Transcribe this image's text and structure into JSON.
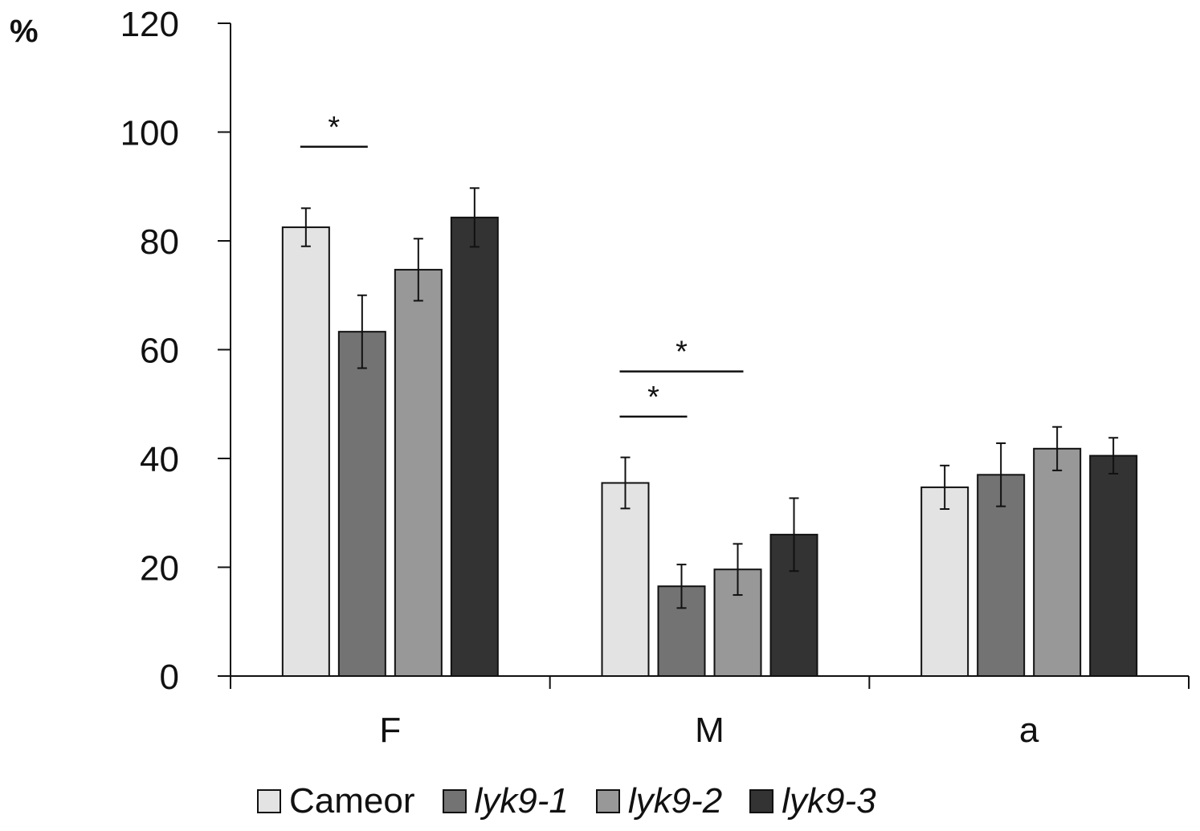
{
  "chart_data": {
    "type": "bar",
    "title": "",
    "xlabel": "",
    "ylabel": "%",
    "ylim": [
      0,
      120
    ],
    "yticks": [
      0,
      20,
      40,
      60,
      80,
      100,
      120
    ],
    "grid": false,
    "legend_placement": "bottom",
    "categories": [
      "F",
      "M",
      "a"
    ],
    "series": [
      {
        "name": "Cameor",
        "italic": false,
        "color": "#e3e3e3",
        "values": [
          82.5,
          35.5,
          34.7
        ],
        "errors": [
          3.5,
          4.7,
          4.0
        ]
      },
      {
        "name": "lyk9-1",
        "italic": true,
        "color": "#737373",
        "values": [
          63.3,
          16.5,
          37.0
        ],
        "errors": [
          6.7,
          4.0,
          5.8
        ]
      },
      {
        "name": "lyk9-2",
        "italic": true,
        "color": "#989898",
        "values": [
          74.7,
          19.6,
          41.8
        ],
        "errors": [
          5.7,
          4.7,
          4.0
        ]
      },
      {
        "name": "lyk9-3",
        "italic": true,
        "color": "#333333",
        "values": [
          84.3,
          26.0,
          40.5
        ],
        "errors": [
          5.4,
          6.7,
          3.3
        ]
      }
    ],
    "significance": [
      {
        "category": "F",
        "from_series": 0,
        "to_series": 1,
        "y": 97.3,
        "label": "*"
      },
      {
        "category": "M",
        "from_series": 0,
        "to_series": 1,
        "y": 47.7,
        "label": "*"
      },
      {
        "category": "M",
        "from_series": 0,
        "to_series": 2,
        "y": 56.0,
        "label": "*"
      }
    ]
  }
}
